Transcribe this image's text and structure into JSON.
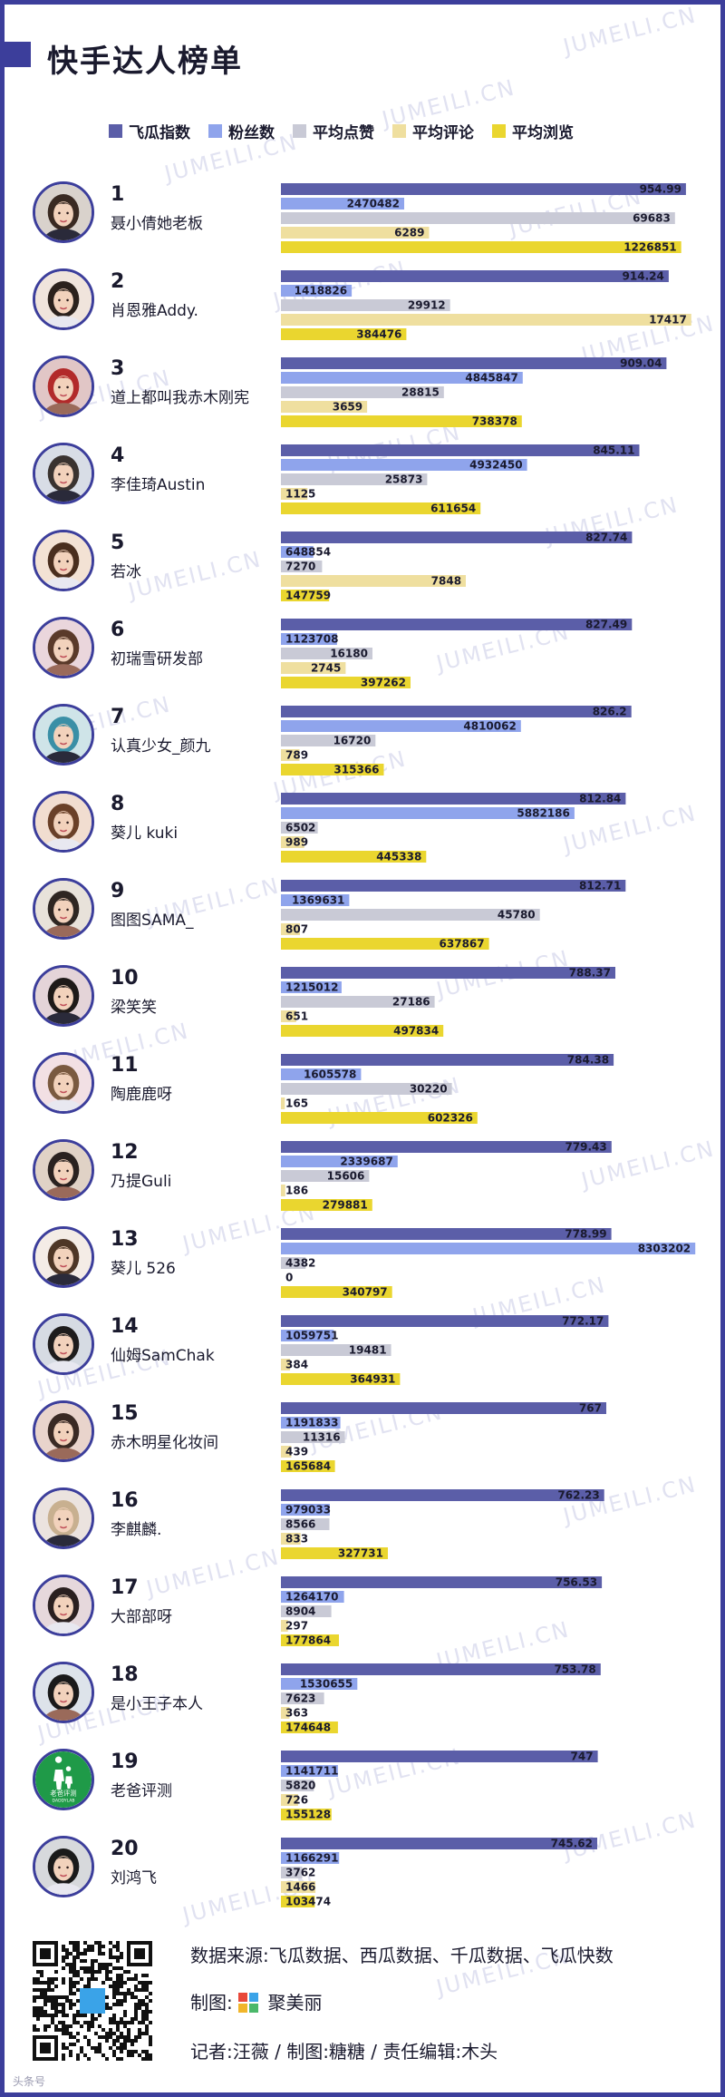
{
  "page": {
    "title": "快手达人榜单",
    "watermark": "JUMEILI.CN",
    "corner_mark": "头条号"
  },
  "colors": {
    "frame": "#3c3e9b",
    "s0": "#5b5ea8",
    "s1": "#8fa4ec",
    "s2": "#c9cad6",
    "s3": "#efdf9f",
    "s4": "#ead62f"
  },
  "legend": [
    {
      "label": "飞瓜指数",
      "color": "#5b5ea8"
    },
    {
      "label": "粉丝数",
      "color": "#8fa4ec"
    },
    {
      "label": "平均点赞",
      "color": "#c9cad6"
    },
    {
      "label": "平均评论",
      "color": "#efdf9f"
    },
    {
      "label": "平均浏览",
      "color": "#ead62f"
    }
  ],
  "chart_data": {
    "type": "bar",
    "orientation": "horizontal",
    "series": [
      {
        "name": "飞瓜指数",
        "max": 1000
      },
      {
        "name": "粉丝数",
        "max": 8500000
      },
      {
        "name": "平均点赞",
        "max": 75000
      },
      {
        "name": "平均评论",
        "max": 18000
      },
      {
        "name": "平均浏览",
        "max": 1300000
      }
    ],
    "rows": [
      {
        "rank": "1",
        "name": "聂小倩她老板",
        "values": [
          954.99,
          2470482,
          69683,
          6289,
          1226851
        ],
        "labels": [
          "954.99",
          "2470482",
          "69683",
          "6289",
          "1226851"
        ]
      },
      {
        "rank": "2",
        "name": "肖恩雅Addy.",
        "values": [
          914.24,
          1418826,
          29912,
          17417,
          384476
        ],
        "labels": [
          "914.24",
          "1418826",
          "29912",
          "17417",
          "384476"
        ]
      },
      {
        "rank": "3",
        "name": "道上都叫我赤木刚宪",
        "values": [
          909.04,
          4845847,
          28815,
          3659,
          738378
        ],
        "labels": [
          "909.04",
          "4845847",
          "28815",
          "3659",
          "738378"
        ]
      },
      {
        "rank": "4",
        "name": "李佳琦Austin",
        "values": [
          845.11,
          4932450,
          25873,
          1125,
          611654
        ],
        "labels": [
          "845.11",
          "4932450",
          "25873",
          "1125",
          "611654"
        ]
      },
      {
        "rank": "5",
        "name": "若冰",
        "values": [
          827.74,
          648854,
          7270,
          7848,
          147759
        ],
        "labels": [
          "827.74",
          "648854",
          "7270",
          "7848",
          "147759"
        ]
      },
      {
        "rank": "6",
        "name": "初瑞雪研发部",
        "values": [
          827.49,
          1123708,
          16180,
          2745,
          397262
        ],
        "labels": [
          "827.49",
          "1123708",
          "16180",
          "2745",
          "397262"
        ]
      },
      {
        "rank": "7",
        "name": "认真少女_颜九",
        "values": [
          826.2,
          4810062,
          16720,
          789,
          315366
        ],
        "labels": [
          "826.2",
          "4810062",
          "16720",
          "789",
          "315366"
        ]
      },
      {
        "rank": "8",
        "name": "葵儿  kuki",
        "values": [
          812.84,
          5882186,
          6502,
          989,
          445338
        ],
        "labels": [
          "812.84",
          "5882186",
          "6502",
          "989",
          "445338"
        ]
      },
      {
        "rank": "9",
        "name": "图图SAMA_",
        "values": [
          812.71,
          1369631,
          45780,
          807,
          637867
        ],
        "labels": [
          "812.71",
          "1369631",
          "45780",
          "807",
          "637867"
        ]
      },
      {
        "rank": "10",
        "name": "梁笑笑",
        "values": [
          788.37,
          1215012,
          27186,
          651,
          497834
        ],
        "labels": [
          "788.37",
          "1215012",
          "27186",
          "651",
          "497834"
        ]
      },
      {
        "rank": "11",
        "name": "陶鹿鹿呀",
        "values": [
          784.38,
          1605578,
          30220,
          165,
          602326
        ],
        "labels": [
          "784.38",
          "1605578",
          "30220",
          "165",
          "602326"
        ]
      },
      {
        "rank": "12",
        "name": "乃提Guli",
        "values": [
          779.43,
          2339687,
          15606,
          186,
          279881
        ],
        "labels": [
          "779.43",
          "2339687",
          "15606",
          "186",
          "279881"
        ]
      },
      {
        "rank": "13",
        "name": "葵儿  526",
        "values": [
          778.99,
          8303202,
          4382,
          0,
          340797
        ],
        "labels": [
          "778.99",
          "8303202",
          "4382",
          "0",
          "340797"
        ]
      },
      {
        "rank": "14",
        "name": "仙姆SamChak",
        "values": [
          772.17,
          1059751,
          19481,
          384,
          364931
        ],
        "labels": [
          "772.17",
          "1059751",
          "19481",
          "384",
          "364931"
        ]
      },
      {
        "rank": "15",
        "name": "赤木明星化妆间",
        "values": [
          767,
          1191833,
          11316,
          439,
          165684
        ],
        "labels": [
          "767",
          "1191833",
          "11316",
          "439",
          "165684"
        ]
      },
      {
        "rank": "16",
        "name": "李麒麟.",
        "values": [
          762.23,
          979033,
          8566,
          833,
          327731
        ],
        "labels": [
          "762.23",
          "979033",
          "8566",
          "833",
          "327731"
        ]
      },
      {
        "rank": "17",
        "name": "大部部呀",
        "values": [
          756.53,
          1264170,
          8904,
          297,
          177864
        ],
        "labels": [
          "756.53",
          "1264170",
          "8904",
          "297",
          "177864"
        ]
      },
      {
        "rank": "18",
        "name": "是小王子本人",
        "values": [
          753.78,
          1530655,
          7623,
          363,
          174648
        ],
        "labels": [
          "753.78",
          "1530655",
          "7623",
          "363",
          "174648"
        ]
      },
      {
        "rank": "19",
        "name": "老爸评测",
        "values": [
          747,
          1141711,
          5820,
          726,
          155128
        ],
        "labels": [
          "747",
          "1141711",
          "5820",
          "726",
          "155128"
        ]
      },
      {
        "rank": "20",
        "name": "刘鸿飞",
        "values": [
          745.62,
          1166291,
          3762,
          1466,
          103474
        ],
        "labels": [
          "745.62",
          "1166291",
          "3762",
          "1466",
          "103474"
        ]
      }
    ]
  },
  "footer": {
    "source": "数据来源:飞瓜数据、西瓜数据、千瓜数据、飞瓜快数",
    "chart_by_prefix": "制图:",
    "chart_by_brand": "聚美丽",
    "credits": "记者:汪薇 / 制图:糖糖 / 责任编辑:木头",
    "avatar_19_text": "老爸评测",
    "avatar_19_sub": "DADDYLAB"
  }
}
